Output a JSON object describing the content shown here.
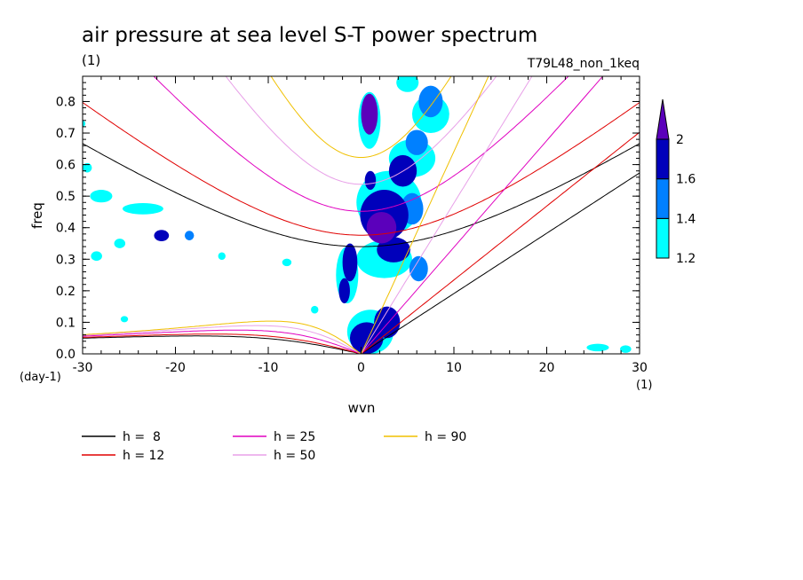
{
  "chart_data": {
    "type": "heatmap",
    "title": "air pressure at sea level S-T power spectrum",
    "title_units": "(1)",
    "run_label": "T79L48_non_1keq",
    "xlabel": "wvn",
    "xunits": "(1)",
    "ylabel": "freq",
    "yunits": "(day-1)",
    "xlim": [
      -30,
      30
    ],
    "ylim": [
      0,
      0.88
    ],
    "x_ticks": [
      -30,
      -20,
      -10,
      0,
      10,
      20,
      30
    ],
    "x_tick_labels": [
      "-30",
      "-20",
      "-10",
      "0",
      "10",
      "20",
      "30"
    ],
    "y_ticks": [
      0,
      0.1,
      0.2,
      0.3,
      0.4,
      0.5,
      0.6,
      0.7,
      0.8
    ],
    "y_tick_labels": [
      "0.0",
      "0.1",
      "0.2",
      "0.3",
      "0.4",
      "0.5",
      "0.6",
      "0.7",
      "0.8"
    ],
    "colorbar": {
      "levels": [
        1.2,
        1.4,
        1.6,
        2
      ],
      "labels": [
        "1.2",
        "1.4",
        "1.6",
        "2"
      ],
      "colors": [
        "#00ffff",
        "#0080ff",
        "#0000bb",
        "#5b00bb"
      ]
    },
    "dispersion_curves": [
      {
        "label": "h =  8",
        "h": 8,
        "color": "#000000"
      },
      {
        "label": "h = 12",
        "h": 12,
        "color": "#e00000"
      },
      {
        "label": "h = 25",
        "h": 25,
        "color": "#e000c0"
      },
      {
        "label": "h = 50",
        "h": 50,
        "color": "#e8a0e8"
      },
      {
        "label": "h = 90",
        "h": 90,
        "color": "#f0c000"
      }
    ],
    "contour_blobs": [
      {
        "x": 0.9,
        "y": 0.76,
        "rx": 0.9,
        "ry": 0.065,
        "level": 4
      },
      {
        "x": 1.0,
        "y": 0.55,
        "rx": 0.6,
        "ry": 0.03,
        "level": 3
      },
      {
        "x": 2.5,
        "y": 0.44,
        "rx": 2.6,
        "ry": 0.08,
        "level": 3
      },
      {
        "x": 2.2,
        "y": 0.4,
        "rx": 1.6,
        "ry": 0.05,
        "level": 4
      },
      {
        "x": 3.5,
        "y": 0.33,
        "rx": 1.8,
        "ry": 0.04,
        "level": 3
      },
      {
        "x": 4.5,
        "y": 0.58,
        "rx": 1.5,
        "ry": 0.05,
        "level": 3
      },
      {
        "x": 6.0,
        "y": 0.67,
        "rx": 1.2,
        "ry": 0.04,
        "level": 2
      },
      {
        "x": 7.5,
        "y": 0.8,
        "rx": 1.3,
        "ry": 0.05,
        "level": 2
      },
      {
        "x": 5.5,
        "y": 0.46,
        "rx": 1.2,
        "ry": 0.05,
        "level": 2
      },
      {
        "x": 6.2,
        "y": 0.27,
        "rx": 1.0,
        "ry": 0.04,
        "level": 2
      },
      {
        "x": -1.2,
        "y": 0.29,
        "rx": 0.8,
        "ry": 0.06,
        "level": 3
      },
      {
        "x": -1.8,
        "y": 0.2,
        "rx": 0.6,
        "ry": 0.04,
        "level": 3
      },
      {
        "x": 0.6,
        "y": 0.05,
        "rx": 1.8,
        "ry": 0.05,
        "level": 3
      },
      {
        "x": 2.8,
        "y": 0.1,
        "rx": 1.4,
        "ry": 0.05,
        "level": 3
      },
      {
        "x": -21.5,
        "y": 0.375,
        "rx": 0.8,
        "ry": 0.018,
        "level": 3
      },
      {
        "x": -18.5,
        "y": 0.375,
        "rx": 0.5,
        "ry": 0.015,
        "level": 2
      },
      {
        "x": -23.5,
        "y": 0.46,
        "rx": 2.2,
        "ry": 0.018,
        "level": 1
      },
      {
        "x": -28.0,
        "y": 0.5,
        "rx": 1.2,
        "ry": 0.02,
        "level": 1
      },
      {
        "x": -26.0,
        "y": 0.35,
        "rx": 0.6,
        "ry": 0.015,
        "level": 1
      },
      {
        "x": -30.5,
        "y": 0.73,
        "rx": 0.8,
        "ry": 0.015,
        "level": 1
      },
      {
        "x": -29.5,
        "y": 0.59,
        "rx": 0.5,
        "ry": 0.015,
        "level": 1
      },
      {
        "x": -28.5,
        "y": 0.31,
        "rx": 0.6,
        "ry": 0.015,
        "level": 1
      },
      {
        "x": -15.0,
        "y": 0.31,
        "rx": 0.4,
        "ry": 0.012,
        "level": 1
      },
      {
        "x": -8.0,
        "y": 0.29,
        "rx": 0.5,
        "ry": 0.012,
        "level": 1
      },
      {
        "x": -5.0,
        "y": 0.14,
        "rx": 0.4,
        "ry": 0.012,
        "level": 1
      },
      {
        "x": -25.5,
        "y": 0.11,
        "rx": 0.4,
        "ry": 0.01,
        "level": 1
      },
      {
        "x": 25.5,
        "y": 0.02,
        "rx": 1.2,
        "ry": 0.012,
        "level": 1
      },
      {
        "x": 28.5,
        "y": 0.015,
        "rx": 0.6,
        "ry": 0.012,
        "level": 1
      },
      {
        "x": 5.5,
        "y": 0.62,
        "rx": 2.5,
        "ry": 0.06,
        "level": 1
      },
      {
        "x": 3.0,
        "y": 0.48,
        "rx": 3.5,
        "ry": 0.1,
        "level": 1
      },
      {
        "x": 2.5,
        "y": 0.3,
        "rx": 3.0,
        "ry": 0.06,
        "level": 1
      },
      {
        "x": 1.0,
        "y": 0.07,
        "rx": 2.5,
        "ry": 0.07,
        "level": 1
      },
      {
        "x": 7.5,
        "y": 0.76,
        "rx": 2.0,
        "ry": 0.06,
        "level": 1
      },
      {
        "x": -1.5,
        "y": 0.25,
        "rx": 1.2,
        "ry": 0.09,
        "level": 1
      },
      {
        "x": 0.9,
        "y": 0.74,
        "rx": 1.2,
        "ry": 0.09,
        "level": 1
      },
      {
        "x": 5.0,
        "y": 0.86,
        "rx": 1.2,
        "ry": 0.03,
        "level": 1
      }
    ]
  }
}
